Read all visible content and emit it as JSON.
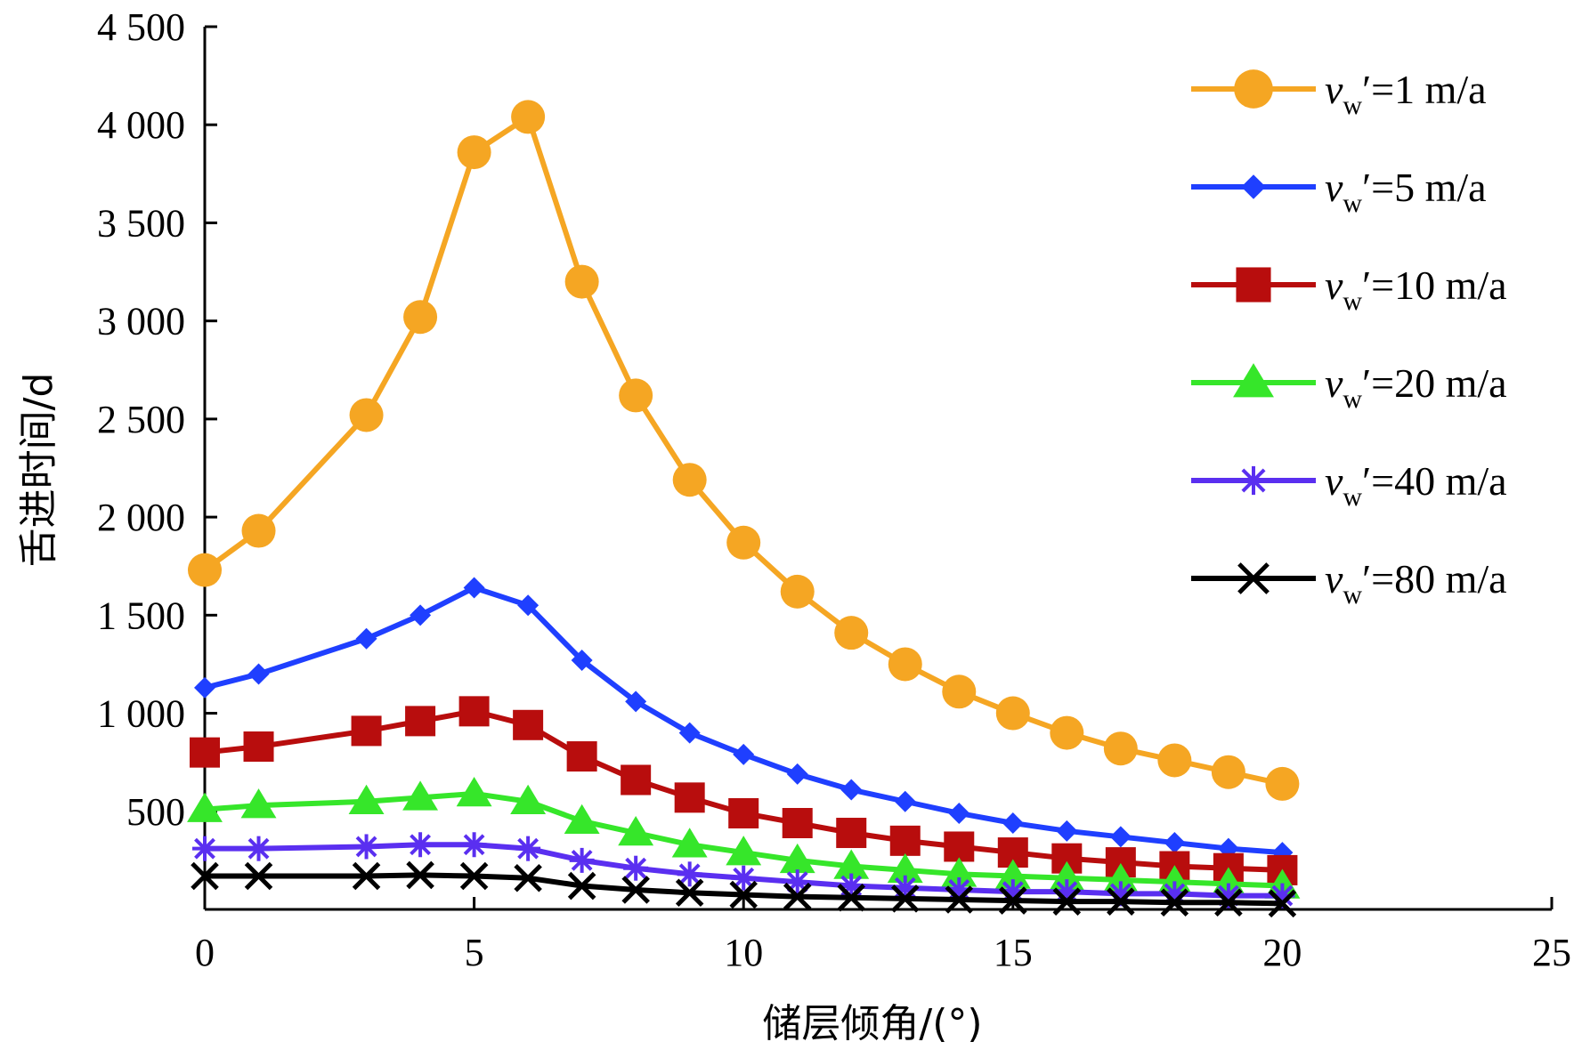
{
  "chart_data": {
    "type": "line",
    "title": "",
    "xlabel": "储层倾角/(°)",
    "ylabel": "舌进时间/d",
    "xlim": [
      0,
      25
    ],
    "ylim": [
      0,
      4500
    ],
    "x_ticks": [
      0,
      5,
      10,
      15,
      20,
      25
    ],
    "x_tick_labels": [
      "0",
      "5",
      "10",
      "15",
      "20",
      "25"
    ],
    "y_ticks": [
      500,
      1000,
      1500,
      2000,
      2500,
      3000,
      3500,
      4000,
      4500
    ],
    "y_tick_labels": [
      "500",
      "1 000",
      "1 500",
      "2 000",
      "2 500",
      "3 000",
      "3 500",
      "4 000",
      "4 500"
    ],
    "grid": false,
    "legend_position": "top-right",
    "x": [
      0,
      1,
      3,
      4,
      5,
      6,
      7,
      8,
      9,
      10,
      11,
      12,
      13,
      14,
      15,
      16,
      17,
      18,
      19,
      20
    ],
    "series": [
      {
        "name_var": "v",
        "name_sub": "w",
        "name_value": "′=1 m/a",
        "color": "#f5a623",
        "marker": "circle",
        "values": [
          1730,
          1930,
          2520,
          3020,
          3860,
          4040,
          3200,
          2620,
          2190,
          1870,
          1620,
          1410,
          1250,
          1110,
          1000,
          900,
          820,
          760,
          700,
          640
        ]
      },
      {
        "name_var": "v",
        "name_sub": "w",
        "name_value": "′=5 m/a",
        "color": "#1f3fff",
        "marker": "diamond",
        "values": [
          1130,
          1200,
          1380,
          1500,
          1640,
          1550,
          1270,
          1060,
          900,
          790,
          690,
          610,
          550,
          490,
          440,
          400,
          370,
          340,
          310,
          290
        ]
      },
      {
        "name_var": "v",
        "name_sub": "w",
        "name_value": "′=10 m/a",
        "color": "#b80d0d",
        "marker": "square",
        "values": [
          800,
          830,
          910,
          960,
          1010,
          940,
          780,
          660,
          570,
          490,
          440,
          390,
          350,
          320,
          290,
          260,
          240,
          220,
          210,
          200
        ]
      },
      {
        "name_var": "v",
        "name_sub": "w",
        "name_value": "′=20 m/a",
        "color": "#36e62a",
        "marker": "triangle",
        "values": [
          510,
          530,
          550,
          570,
          590,
          550,
          450,
          390,
          330,
          290,
          250,
          220,
          200,
          180,
          170,
          160,
          150,
          140,
          130,
          120
        ]
      },
      {
        "name_var": "v",
        "name_sub": "w",
        "name_value": "′=40 m/a",
        "color": "#5a2ff0",
        "marker": "asterisk",
        "values": [
          310,
          310,
          320,
          330,
          330,
          310,
          250,
          210,
          180,
          160,
          140,
          120,
          110,
          100,
          90,
          90,
          80,
          80,
          70,
          70
        ]
      },
      {
        "name_var": "v",
        "name_sub": "w",
        "name_value": "′=80 m/a",
        "color": "#000000",
        "marker": "x",
        "values": [
          170,
          170,
          170,
          175,
          170,
          160,
          120,
          100,
          85,
          75,
          65,
          60,
          55,
          50,
          45,
          40,
          40,
          35,
          35,
          30
        ]
      }
    ]
  }
}
